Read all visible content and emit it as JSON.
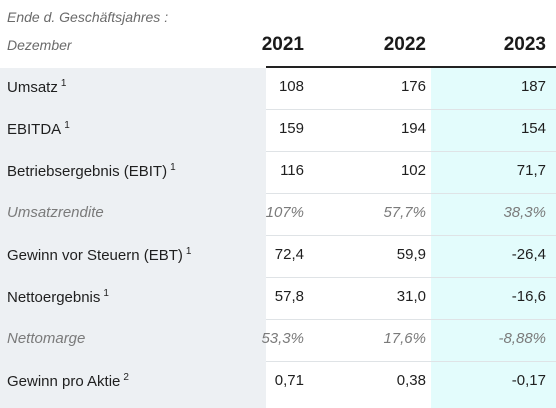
{
  "caption": {
    "line1": "Ende d. Geschäftsjahres :",
    "line2": "Dezember"
  },
  "years": [
    "2021",
    "2022",
    "2023"
  ],
  "colors": {
    "label_column_bg": "#edf0f3",
    "highlight_column_bg": "#e3fcfc",
    "header_rule": "#222222",
    "muted_text": "#7a7a7a"
  },
  "rows": [
    {
      "label": "Umsatz",
      "footnote": "1",
      "values": [
        "108",
        "176",
        "187"
      ],
      "italic": false
    },
    {
      "label": "EBITDA",
      "footnote": "1",
      "values": [
        "159",
        "194",
        "154"
      ],
      "italic": false
    },
    {
      "label": "Betriebsergebnis (EBIT)",
      "footnote": "1",
      "values": [
        "116",
        "102",
        "71,7"
      ],
      "italic": false
    },
    {
      "label": "Umsatzrendite",
      "footnote": "",
      "values": [
        "107%",
        "57,7%",
        "38,3%"
      ],
      "italic": true
    },
    {
      "label": "Gewinn vor Steuern (EBT)",
      "footnote": "1",
      "values": [
        "72,4",
        "59,9",
        "-26,4"
      ],
      "italic": false
    },
    {
      "label": "Nettoergebnis",
      "footnote": "1",
      "values": [
        "57,8",
        "31,0",
        "-16,6"
      ],
      "italic": false
    },
    {
      "label": "Nettomarge",
      "footnote": "",
      "values": [
        "53,3%",
        "17,6%",
        "-8,88%"
      ],
      "italic": true
    },
    {
      "label": "Gewinn pro Aktie",
      "footnote": "2",
      "values": [
        "0,71",
        "0,38",
        "-0,17"
      ],
      "italic": false
    }
  ]
}
